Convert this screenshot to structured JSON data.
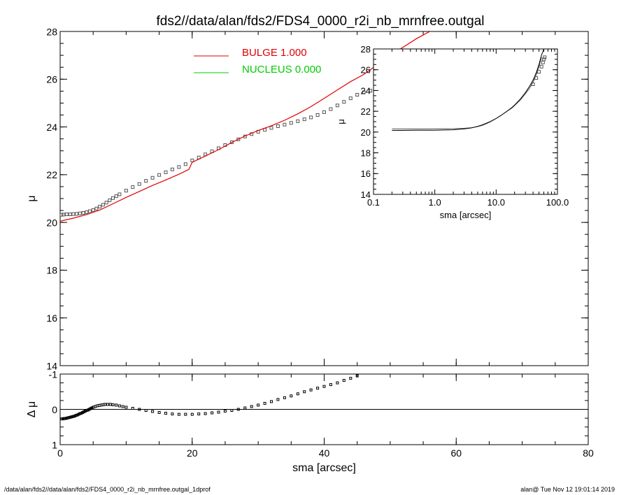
{
  "figure": {
    "title": "fds2//data/alan/fds2/FDS4_0000_r2i_nb_mrnfree.outgal",
    "footer_left": "/data/alan/fds2//data/alan/fds2/FDS4_0000_r2i_nb_mrnfree.outgal_1dprof",
    "footer_right": "alan@  Tue Nov 12 19:01:14 2019"
  },
  "legend": [
    {
      "label": "BULGE  1.000",
      "color": "#e00000"
    },
    {
      "label": "NUCLEUS  0.000",
      "color": "#00cc00"
    }
  ],
  "chart_data": [
    {
      "id": "main-profile",
      "type": "scatter",
      "xlabel": "",
      "ylabel": "μ",
      "xlim": [
        0,
        80
      ],
      "ylim": [
        28,
        14
      ],
      "xticks": [
        0,
        20,
        40,
        60,
        80
      ],
      "yticks": [
        14,
        16,
        18,
        20,
        22,
        24,
        26,
        28
      ],
      "ytick_labels": [
        "14",
        "16",
        "18",
        "20",
        "22",
        "24",
        "26",
        "28"
      ],
      "series": [
        {
          "kind": "points",
          "color": "#555555",
          "x": [
            0.2,
            0.5,
            1,
            1.5,
            2,
            2.5,
            3,
            3.5,
            4,
            4.5,
            5,
            5.5,
            6,
            6.5,
            7,
            7.5,
            8,
            8.5,
            9,
            10,
            11,
            12,
            13,
            14,
            15,
            16,
            17,
            18,
            19,
            20,
            21,
            22,
            23,
            24,
            25,
            26,
            27,
            28,
            29,
            30,
            31,
            32,
            33,
            34,
            35,
            36,
            37,
            38,
            39,
            40,
            41,
            42,
            43,
            44,
            45,
            46,
            47,
            48,
            49,
            50,
            51,
            52,
            53,
            54,
            55,
            56,
            57,
            58,
            59,
            60,
            61,
            62,
            63
          ],
          "y": [
            20.32,
            20.33,
            20.34,
            20.34,
            20.35,
            20.36,
            20.38,
            20.4,
            20.43,
            20.47,
            20.52,
            20.58,
            20.66,
            20.74,
            20.83,
            20.93,
            21.02,
            21.1,
            21.18,
            21.33,
            21.48,
            21.61,
            21.74,
            21.87,
            21.99,
            22.1,
            22.22,
            22.32,
            22.44,
            22.6,
            22.72,
            22.85,
            22.98,
            23.11,
            23.24,
            23.36,
            23.48,
            23.6,
            23.7,
            23.8,
            23.88,
            23.96,
            24.03,
            24.1,
            24.17,
            24.24,
            24.32,
            24.4,
            24.5,
            24.62,
            24.75,
            24.9,
            25.05,
            25.2,
            25.35,
            25.45,
            25.52,
            25.6,
            25.7,
            25.75,
            25.82,
            25.92,
            26.05,
            26.12,
            26.25,
            26.28,
            26.45,
            26.55,
            26.65,
            26.85,
            26.95,
            26.95,
            27.15
          ]
        },
        {
          "kind": "line",
          "color": "#e00000",
          "x": [
            0,
            2,
            4,
            6,
            8,
            10,
            12,
            14,
            16,
            18,
            19.5,
            20,
            22,
            24,
            26,
            28,
            30,
            32,
            34,
            36,
            38,
            40,
            42,
            44,
            46,
            48,
            50,
            52,
            54,
            56
          ],
          "y": [
            20.05,
            20.18,
            20.33,
            20.52,
            20.78,
            21.05,
            21.3,
            21.55,
            21.78,
            22.02,
            22.22,
            22.52,
            22.78,
            23.05,
            23.35,
            23.62,
            23.85,
            24.05,
            24.28,
            24.55,
            24.85,
            25.2,
            25.55,
            25.9,
            26.2,
            26.6,
            27.0,
            27.35,
            27.7,
            28.0
          ]
        }
      ]
    },
    {
      "id": "inset-profile",
      "type": "scatter",
      "xscale": "log",
      "xlabel": "sma [arcsec]",
      "ylabel": "μ",
      "xlim": [
        0.1,
        100
      ],
      "ylim": [
        28,
        14
      ],
      "xticks": [
        0.1,
        1,
        10,
        100
      ],
      "xtick_labels": [
        "0.1",
        "1.0",
        "10.0",
        "100.0"
      ],
      "yticks": [
        14,
        16,
        18,
        20,
        22,
        24,
        26,
        28
      ],
      "ytick_labels": [
        "14",
        "16",
        "18",
        "20",
        "22",
        "24",
        "26",
        "28"
      ],
      "series": [
        {
          "kind": "line",
          "color": "#555555",
          "x": [
            0.2,
            0.3,
            0.5,
            0.8,
            1,
            1.5,
            2,
            3,
            4,
            5,
            6,
            7,
            8,
            10,
            12,
            15,
            18,
            20,
            25,
            30,
            35,
            40,
            45,
            50,
            55
          ],
          "y": [
            20.3,
            20.3,
            20.3,
            20.3,
            20.31,
            20.32,
            20.33,
            20.36,
            20.42,
            20.52,
            20.66,
            20.82,
            20.98,
            21.3,
            21.6,
            22.0,
            22.3,
            22.55,
            23.1,
            23.7,
            24.2,
            24.8,
            25.5,
            26.3,
            27.2
          ]
        },
        {
          "kind": "line",
          "color": "#000000",
          "x": [
            0.2,
            0.5,
            1,
            2,
            3,
            4,
            5,
            6,
            8,
            10,
            12,
            15,
            18,
            20,
            25,
            30,
            35,
            40,
            45,
            50,
            55,
            60
          ],
          "y": [
            20.15,
            20.17,
            20.18,
            20.22,
            20.3,
            20.4,
            20.55,
            20.7,
            21.0,
            21.3,
            21.6,
            22.0,
            22.35,
            22.6,
            23.2,
            23.8,
            24.4,
            25.0,
            25.7,
            26.5,
            27.4,
            28.0
          ]
        },
        {
          "kind": "points",
          "color": "#555555",
          "x": [
            40,
            45,
            50,
            55,
            58,
            60,
            62
          ],
          "y": [
            24.6,
            25.2,
            25.8,
            26.3,
            26.7,
            27.0,
            27.2
          ]
        }
      ]
    },
    {
      "id": "residual-profile",
      "type": "scatter",
      "xlabel": "sma [arcsec]",
      "ylabel": "Δ μ",
      "xlim": [
        0,
        80
      ],
      "ylim": [
        -1,
        1
      ],
      "xticks": [
        0,
        20,
        40,
        60,
        80
      ],
      "xtick_labels": [
        "0",
        "20",
        "40",
        "60",
        "80"
      ],
      "yticks": [
        -1,
        0,
        1
      ],
      "ytick_labels": [
        "-1",
        "0",
        "1"
      ],
      "series": [
        {
          "kind": "points",
          "color": "#000000",
          "x": [
            0.2,
            0.4,
            0.6,
            0.8,
            1,
            1.2,
            1.4,
            1.6,
            1.8,
            2,
            2.2,
            2.4,
            2.6,
            2.8,
            3,
            3.2,
            3.4,
            3.6,
            3.8,
            4,
            4.2,
            4.4,
            4.6,
            4.8,
            5,
            5.3,
            5.6,
            5.9,
            6.2,
            6.5,
            6.8,
            7.2,
            7.6,
            8,
            8.5,
            9,
            9.5,
            10,
            11,
            12,
            13,
            14,
            15,
            16,
            17,
            18,
            19,
            20,
            21,
            22,
            23,
            24,
            25,
            26,
            27,
            28,
            29,
            30,
            31,
            32,
            33,
            34,
            35,
            36,
            37,
            38,
            39,
            40,
            41,
            42,
            43,
            44,
            45
          ],
          "y": [
            0.27,
            0.27,
            0.26,
            0.26,
            0.25,
            0.24,
            0.23,
            0.22,
            0.21,
            0.2,
            0.19,
            0.17,
            0.16,
            0.14,
            0.12,
            0.11,
            0.09,
            0.07,
            0.05,
            0.03,
            0.02,
            0.0,
            -0.02,
            -0.04,
            -0.06,
            -0.08,
            -0.1,
            -0.11,
            -0.12,
            -0.13,
            -0.14,
            -0.14,
            -0.14,
            -0.13,
            -0.12,
            -0.1,
            -0.08,
            -0.06,
            -0.03,
            0.0,
            0.03,
            0.06,
            0.09,
            0.11,
            0.13,
            0.14,
            0.14,
            0.14,
            0.13,
            0.12,
            0.1,
            0.08,
            0.05,
            0.03,
            0.0,
            -0.04,
            -0.08,
            -0.12,
            -0.17,
            -0.22,
            -0.28,
            -0.33,
            -0.38,
            -0.44,
            -0.5,
            -0.55,
            -0.6,
            -0.65,
            -0.7,
            -0.75,
            -0.82,
            -0.88,
            -0.95
          ]
        }
      ]
    }
  ]
}
